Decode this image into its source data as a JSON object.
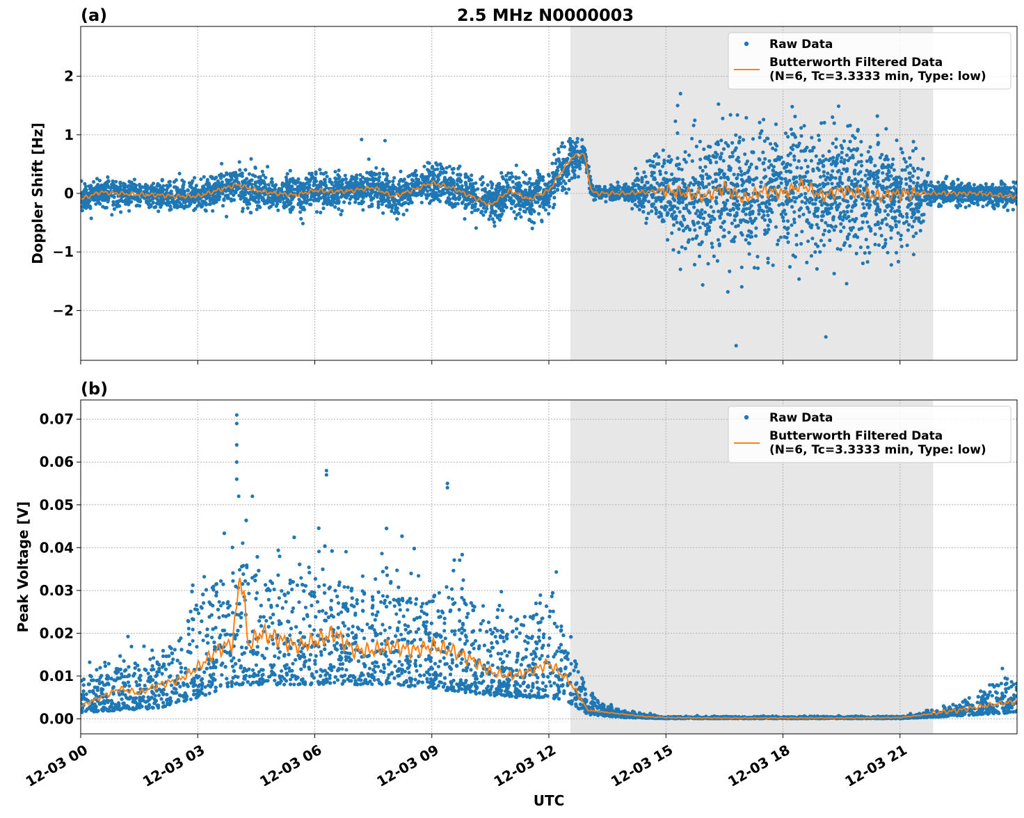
{
  "figure": {
    "title": "2.5 MHz N0000003",
    "xlabel": "UTC"
  },
  "colors": {
    "raw": "#1f77b4",
    "filtered": "#ff7f0e",
    "shade": "#e7e7e7",
    "grid": "#b0b0b0"
  },
  "chart_data": [
    {
      "type": "scatter",
      "panel_label": "(a)",
      "ylabel": "Doppler Shift [Hz]",
      "x_unit": "hours UTC since 12-03 00:00",
      "xlim": [
        0,
        24
      ],
      "ylim": [
        -2.85,
        2.85
      ],
      "yticks": [
        -2,
        -1,
        0,
        1,
        2
      ],
      "ytick_labels": [
        "−2",
        "−1",
        "0",
        "1",
        "2"
      ],
      "xticks": [
        0,
        3,
        6,
        9,
        12,
        15,
        18,
        21
      ],
      "xtick_labels": [
        "12-03 00",
        "12-03 03",
        "12-03 06",
        "12-03 09",
        "12-03 12",
        "12-03 15",
        "12-03 18",
        "12-03 21"
      ],
      "grid": true,
      "shaded_interval": [
        12.55,
        21.85
      ],
      "legend": {
        "position": "top-right",
        "raw_label": "Raw Data",
        "filtered_label_1": "Butterworth Filtered Data",
        "filtered_label_2": "(N=6, Tc=3.3333 min, Type: low)"
      },
      "series": [
        {
          "name": "Butterworth Filtered Data",
          "x": [
            0,
            0.5,
            1,
            1.5,
            2,
            2.5,
            3,
            3.5,
            4,
            4.5,
            5,
            5.5,
            6,
            6.5,
            7,
            7.5,
            8,
            8.5,
            9,
            9.5,
            10,
            10.5,
            11,
            11.5,
            12,
            12.3,
            12.6,
            12.9,
            13.1,
            13.3,
            14,
            15,
            15.5,
            16,
            16.5,
            17,
            17.5,
            18,
            18.5,
            19,
            19.5,
            20,
            20.5,
            21,
            21.5,
            22,
            22.5,
            23,
            23.5,
            24
          ],
          "y": [
            -0.1,
            0.02,
            0.0,
            -0.02,
            -0.03,
            -0.05,
            -0.05,
            0.05,
            0.15,
            0.05,
            0.0,
            -0.03,
            0.05,
            0.03,
            0.05,
            0.1,
            -0.05,
            0.05,
            0.18,
            0.1,
            -0.05,
            -0.2,
            0.05,
            -0.1,
            0.05,
            0.35,
            0.62,
            0.68,
            0.02,
            0.0,
            0.0,
            0.05,
            0.0,
            -0.05,
            0.1,
            -0.1,
            0.05,
            0.0,
            0.15,
            -0.05,
            0.05,
            0.0,
            -0.05,
            0.0,
            0.0,
            0.0,
            0.0,
            0.0,
            -0.03,
            -0.05
          ]
        },
        {
          "name": "Raw Data",
          "spread": {
            "x": [
              0,
              2,
              4,
              6,
              8,
              10,
              11.5,
              12.5,
              13.1,
              14,
              14.8,
              15.5,
              16.5,
              17.5,
              18.5,
              19.5,
              20.5,
              21.2,
              21.8,
              22.5,
              24
            ],
            "y": [
              0.15,
              0.15,
              0.22,
              0.2,
              0.2,
              0.22,
              0.25,
              0.25,
              0.08,
              0.08,
              0.35,
              0.65,
              0.7,
              0.72,
              0.72,
              0.7,
              0.65,
              0.55,
              0.15,
              0.12,
              0.15
            ]
          }
        }
      ]
    },
    {
      "type": "scatter",
      "panel_label": "(b)",
      "ylabel": "Peak Voltage [V]",
      "x_unit": "hours UTC since 12-03 00:00",
      "xlim": [
        0,
        24
      ],
      "ylim": [
        -0.0035,
        0.0745
      ],
      "yticks": [
        0.0,
        0.01,
        0.02,
        0.03,
        0.04,
        0.05,
        0.06,
        0.07
      ],
      "ytick_labels": [
        "0.00",
        "0.01",
        "0.02",
        "0.03",
        "0.04",
        "0.05",
        "0.06",
        "0.07"
      ],
      "xticks": [
        0,
        3,
        6,
        9,
        12,
        15,
        18,
        21
      ],
      "xtick_labels": [
        "12-03 00",
        "12-03 03",
        "12-03 06",
        "12-03 09",
        "12-03 12",
        "12-03 15",
        "12-03 18",
        "12-03 21"
      ],
      "grid": true,
      "shaded_interval": [
        12.55,
        21.85
      ],
      "legend": {
        "position": "top-right",
        "raw_label": "Raw Data",
        "filtered_label_1": "Butterworth Filtered Data",
        "filtered_label_2": "(N=6, Tc=3.3333 min, Type: low)"
      },
      "series": [
        {
          "name": "Butterworth Filtered Data",
          "x": [
            0,
            0.5,
            1,
            1.5,
            2,
            2.5,
            3,
            3.5,
            3.9,
            4.1,
            4.3,
            4.6,
            5,
            5.5,
            6,
            6.5,
            7,
            7.5,
            8,
            8.5,
            9,
            9.5,
            10,
            10.5,
            11,
            11.5,
            12,
            12.5,
            12.8,
            13,
            13.5,
            14,
            14.5,
            15,
            16,
            18,
            20,
            21,
            21.5,
            22,
            22.5,
            23,
            23.5,
            24
          ],
          "y": [
            0.003,
            0.005,
            0.007,
            0.006,
            0.008,
            0.009,
            0.012,
            0.016,
            0.018,
            0.035,
            0.017,
            0.02,
            0.019,
            0.017,
            0.018,
            0.02,
            0.016,
            0.016,
            0.017,
            0.016,
            0.017,
            0.016,
            0.014,
            0.011,
            0.01,
            0.011,
            0.013,
            0.009,
            0.005,
            0.002,
            0.0015,
            0.001,
            0.0005,
            0.0003,
            0.0002,
            0.0002,
            0.0002,
            0.0003,
            0.0008,
            0.0015,
            0.002,
            0.0028,
            0.0035,
            0.004
          ]
        },
        {
          "name": "Raw Data",
          "band_low": {
            "x": [
              0,
              2,
              3,
              4,
              6,
              8,
              10,
              11,
              12,
              12.5,
              13,
              14,
              15,
              21,
              22,
              23,
              24
            ],
            "y": [
              0.0015,
              0.0025,
              0.005,
              0.008,
              0.008,
              0.008,
              0.006,
              0.005,
              0.005,
              0.004,
              0.001,
              0.0003,
              0.0001,
              0.0001,
              0.0005,
              0.001,
              0.0015
            ]
          },
          "band_high": {
            "x": [
              0,
              1,
              2,
              2.5,
              3,
              3.5,
              4,
              4.5,
              6,
              7,
              8,
              9,
              10,
              10.5,
              11,
              11.5,
              12,
              12.5,
              13,
              13.5,
              14,
              15,
              21,
              22,
              23,
              23.5,
              24
            ],
            "y": [
              0.008,
              0.012,
              0.015,
              0.02,
              0.028,
              0.032,
              0.038,
              0.034,
              0.033,
              0.031,
              0.03,
              0.03,
              0.028,
              0.022,
              0.02,
              0.024,
              0.027,
              0.018,
              0.006,
              0.003,
              0.0015,
              0.0005,
              0.0005,
              0.002,
              0.005,
              0.008,
              0.009
            ]
          }
        }
      ]
    }
  ]
}
